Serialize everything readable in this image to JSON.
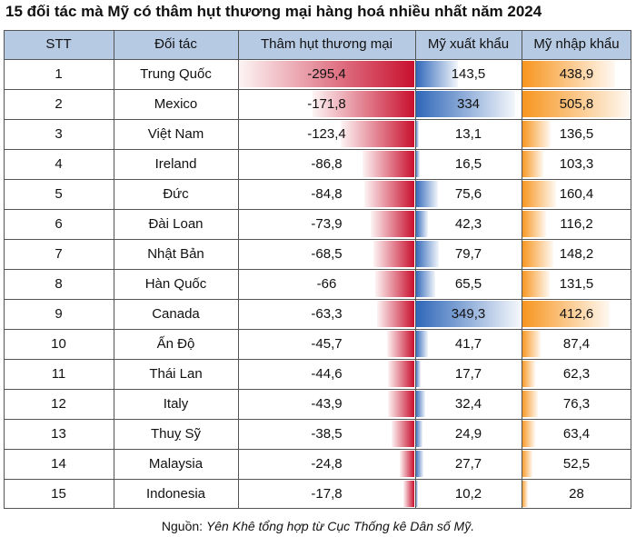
{
  "title": "15 đối tác mà Mỹ có thâm hụt thương mại hàng hoá nhiều nhất năm 2024",
  "source_prefix": "Nguồn: ",
  "source_text": "Yên Khê tổng hợp từ Cục Thống kê Dân số Mỹ.",
  "colors": {
    "header": "#b7cae3",
    "deficit": "#c8102e",
    "export": "#2e66b8",
    "import": "#f7941d"
  },
  "chart_data": {
    "type": "table",
    "columns": [
      "STT",
      "Đối tác",
      "Thâm hụt thương mại",
      "Mỹ xuất khẩu",
      "Mỹ nhập khẩu"
    ],
    "rows": [
      {
        "stt": "1",
        "partner": "Trung Quốc",
        "deficit": "-295,4",
        "export": "143,5",
        "import": "438,9"
      },
      {
        "stt": "2",
        "partner": "Mexico",
        "deficit": "-171,8",
        "export": "334",
        "import": "505,8"
      },
      {
        "stt": "3",
        "partner": "Việt Nam",
        "deficit": "-123,4",
        "export": "13,1",
        "import": "136,5"
      },
      {
        "stt": "4",
        "partner": "Ireland",
        "deficit": "-86,8",
        "export": "16,5",
        "import": "103,3"
      },
      {
        "stt": "5",
        "partner": "Đức",
        "deficit": "-84,8",
        "export": "75,6",
        "import": "160,4"
      },
      {
        "stt": "6",
        "partner": "Đài Loan",
        "deficit": "-73,9",
        "export": "42,3",
        "import": "116,2"
      },
      {
        "stt": "7",
        "partner": "Nhật Bản",
        "deficit": "-68,5",
        "export": "79,7",
        "import": "148,2"
      },
      {
        "stt": "8",
        "partner": "Hàn Quốc",
        "deficit": "-66",
        "export": "65,5",
        "import": "131,5"
      },
      {
        "stt": "9",
        "partner": "Canada",
        "deficit": "-63,3",
        "export": "349,3",
        "import": "412,6"
      },
      {
        "stt": "10",
        "partner": "Ấn Độ",
        "deficit": "-45,7",
        "export": "41,7",
        "import": "87,4"
      },
      {
        "stt": "11",
        "partner": "Thái Lan",
        "deficit": "-44,6",
        "export": "17,7",
        "import": "62,3"
      },
      {
        "stt": "12",
        "partner": "Italy",
        "deficit": "-43,9",
        "export": "32,4",
        "import": "76,3"
      },
      {
        "stt": "13",
        "partner": "Thuỵ Sỹ",
        "deficit": "-38,5",
        "export": "24,9",
        "import": "63,4"
      },
      {
        "stt": "14",
        "partner": "Malaysia",
        "deficit": "-24,8",
        "export": "27,7",
        "import": "52,5"
      },
      {
        "stt": "15",
        "partner": "Indonesia",
        "deficit": "-17,8",
        "export": "10,2",
        "import": "28"
      }
    ]
  }
}
